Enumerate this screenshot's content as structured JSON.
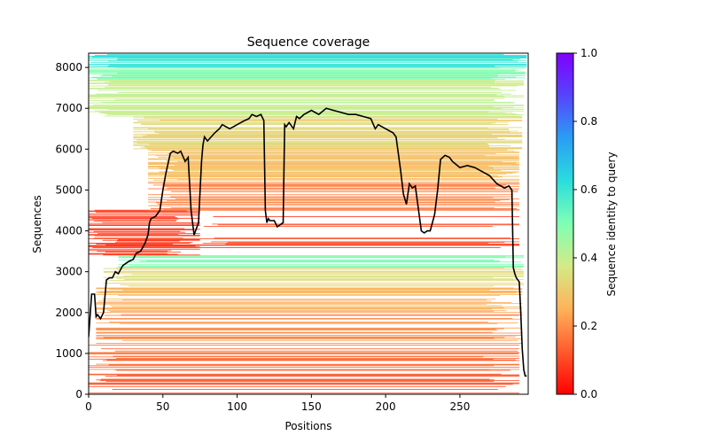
{
  "chart_data": {
    "type": "heatmap",
    "title": "Sequence coverage",
    "xlabel": "Positions",
    "ylabel": "Sequences",
    "xlim": [
      0,
      296
    ],
    "ylim": [
      0,
      8350
    ],
    "xticks": [
      0,
      50,
      100,
      150,
      200,
      250
    ],
    "yticks": [
      0,
      1000,
      2000,
      3000,
      4000,
      5000,
      6000,
      7000,
      8000
    ],
    "colorbar": {
      "label": "Sequence identity to query",
      "range": [
        0.0,
        1.0
      ],
      "ticks": [
        "0.0",
        "0.2",
        "0.4",
        "0.6",
        "0.8",
        "1.0"
      ],
      "colormap": "rainbow_r"
    },
    "heatmap_bands": [
      {
        "y0": 0,
        "y1": 600,
        "x0": 0,
        "x1": 290,
        "identity": 0.12,
        "density": 0.55
      },
      {
        "y0": 600,
        "y1": 1200,
        "x0": 0,
        "x1": 290,
        "identity": 0.15,
        "density": 0.5
      },
      {
        "y0": 1200,
        "y1": 2000,
        "x0": 5,
        "x1": 292,
        "identity": 0.2,
        "density": 0.55
      },
      {
        "y0": 2000,
        "y1": 2600,
        "x0": 5,
        "x1": 292,
        "identity": 0.26,
        "density": 0.65
      },
      {
        "y0": 2600,
        "y1": 3100,
        "x0": 10,
        "x1": 293,
        "identity": 0.33,
        "density": 0.7
      },
      {
        "y0": 3100,
        "y1": 3400,
        "x0": 20,
        "x1": 293,
        "identity": 0.5,
        "density": 0.8
      },
      {
        "y0": 3400,
        "y1": 4500,
        "x0": 0,
        "x1": 75,
        "identity": 0.08,
        "density": 0.75
      },
      {
        "y0": 3400,
        "y1": 4500,
        "x0": 75,
        "x1": 290,
        "identity": 0.1,
        "density": 0.25
      },
      {
        "y0": 4500,
        "y1": 5200,
        "x0": 40,
        "x1": 290,
        "identity": 0.18,
        "density": 0.7
      },
      {
        "y0": 5200,
        "y1": 6000,
        "x0": 40,
        "x1": 290,
        "identity": 0.28,
        "density": 0.75
      },
      {
        "y0": 6000,
        "y1": 6800,
        "x0": 30,
        "x1": 292,
        "identity": 0.33,
        "density": 0.75
      },
      {
        "y0": 6800,
        "y1": 7700,
        "x0": 0,
        "x1": 293,
        "identity": 0.4,
        "density": 0.8
      },
      {
        "y0": 7700,
        "y1": 8000,
        "x0": 0,
        "x1": 294,
        "identity": 0.5,
        "density": 0.9
      },
      {
        "y0": 8000,
        "y1": 8330,
        "x0": 0,
        "x1": 295,
        "identity": 0.6,
        "density": 0.95
      }
    ],
    "coverage_line": {
      "color": "#000000",
      "x": [
        0,
        2,
        4,
        5,
        6,
        7,
        8,
        10,
        12,
        14,
        16,
        18,
        20,
        23,
        27,
        30,
        32,
        35,
        38,
        40,
        41,
        42,
        45,
        48,
        50,
        52,
        55,
        57,
        60,
        62,
        65,
        67,
        69,
        70,
        71,
        72,
        73,
        74,
        76,
        77,
        78,
        80,
        85,
        88,
        90,
        95,
        100,
        105,
        108,
        110,
        113,
        116,
        118,
        119,
        120,
        121,
        122,
        125,
        127,
        129,
        131,
        132,
        133,
        135,
        138,
        140,
        142,
        145,
        150,
        155,
        160,
        165,
        170,
        175,
        180,
        185,
        190,
        193,
        195,
        200,
        205,
        207,
        210,
        212,
        214,
        216,
        218,
        220,
        222,
        224,
        226,
        228,
        230,
        233,
        235,
        237,
        240,
        243,
        245,
        250,
        255,
        260,
        265,
        270,
        275,
        280,
        283,
        285,
        286,
        287,
        288,
        290,
        291,
        292,
        293,
        294,
        295
      ],
      "y": [
        1400,
        2450,
        2450,
        1900,
        1950,
        1900,
        1850,
        2000,
        2800,
        2850,
        2850,
        3000,
        2950,
        3150,
        3250,
        3300,
        3450,
        3500,
        3700,
        3900,
        4200,
        4300,
        4350,
        4500,
        5000,
        5400,
        5900,
        5950,
        5900,
        5950,
        5700,
        5800,
        4500,
        4200,
        3900,
        4000,
        4100,
        4200,
        5700,
        6100,
        6300,
        6200,
        6400,
        6500,
        6600,
        6500,
        6600,
        6700,
        6750,
        6850,
        6800,
        6850,
        6700,
        4500,
        4200,
        4300,
        4250,
        4250,
        4100,
        4150,
        4200,
        6600,
        6550,
        6650,
        6500,
        6800,
        6750,
        6850,
        6950,
        6850,
        7000,
        6950,
        6900,
        6850,
        6850,
        6800,
        6750,
        6500,
        6600,
        6500,
        6400,
        6300,
        5500,
        4900,
        4650,
        5150,
        5050,
        5100,
        4550,
        4000,
        3950,
        4000,
        4000,
        4400,
        5000,
        5750,
        5850,
        5800,
        5700,
        5550,
        5600,
        5550,
        5450,
        5350,
        5150,
        5050,
        5100,
        5000,
        3100,
        2950,
        2850,
        2750,
        2000,
        1100,
        600,
        450,
        450
      ]
    }
  }
}
